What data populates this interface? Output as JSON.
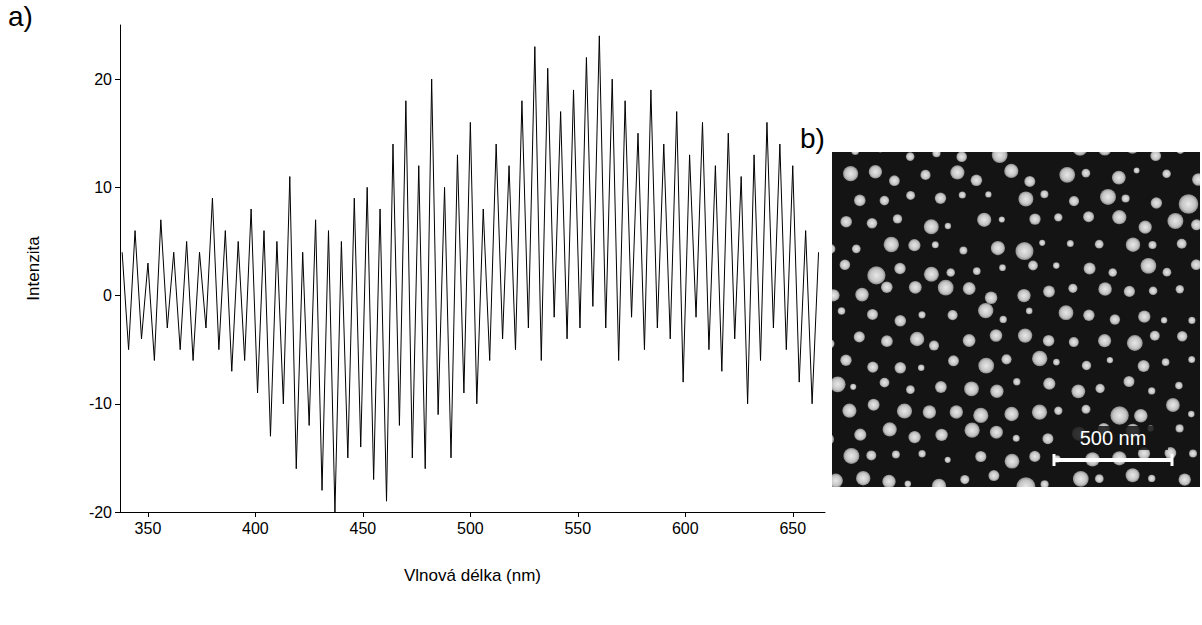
{
  "chart_data": {
    "type": "line",
    "panel_label": "a)",
    "x_label": "Vlnová délka (nm)",
    "y_label": "Intenzita",
    "xlim": [
      337,
      665
    ],
    "xticks": [
      350,
      400,
      450,
      500,
      550,
      600,
      650
    ],
    "ylim": [
      -20,
      25
    ],
    "yticks": [
      -20,
      -10,
      0,
      10,
      20
    ],
    "grid": false,
    "color": "#000000",
    "x": [
      338,
      341,
      344,
      347,
      350,
      353,
      356,
      359,
      362,
      365,
      368,
      371,
      374,
      377,
      380,
      383,
      386,
      389,
      392,
      395,
      398,
      401,
      404,
      407,
      410,
      413,
      416,
      419,
      422,
      425,
      428,
      431,
      434,
      437,
      440,
      443,
      446,
      449,
      452,
      455,
      458,
      461,
      464,
      467,
      470,
      473,
      476,
      479,
      482,
      485,
      488,
      491,
      494,
      497,
      500,
      503,
      506,
      509,
      512,
      515,
      518,
      521,
      524,
      527,
      530,
      533,
      536,
      539,
      542,
      545,
      548,
      551,
      554,
      557,
      560,
      563,
      566,
      569,
      572,
      575,
      578,
      581,
      584,
      587,
      590,
      593,
      596,
      599,
      602,
      605,
      608,
      611,
      614,
      617,
      620,
      623,
      626,
      629,
      632,
      635,
      638,
      641,
      644,
      647,
      650,
      653,
      656,
      659,
      662
    ],
    "values": [
      4,
      -5,
      6,
      -4,
      3,
      -6,
      7,
      -3,
      4,
      -5,
      5,
      -6,
      4,
      -3,
      9,
      -5,
      6,
      -7,
      5,
      -6,
      8,
      -9,
      6,
      -13,
      5,
      -10,
      11,
      -16,
      4,
      -12,
      7,
      -18,
      6,
      -20,
      5,
      -15,
      9,
      -14,
      10,
      -17,
      8,
      -19,
      14,
      -12,
      18,
      -15,
      12,
      -16,
      20,
      -11,
      10,
      -15,
      13,
      -9,
      16,
      -10,
      8,
      -6,
      14,
      -4,
      12,
      -5,
      18,
      -3,
      23,
      -6,
      21,
      -2,
      17,
      -4,
      19,
      -3,
      22,
      -1,
      24,
      -3,
      20,
      -6,
      18,
      -2,
      15,
      -5,
      19,
      -3,
      14,
      -4,
      17,
      -8,
      13,
      -2,
      16,
      -5,
      12,
      -7,
      15,
      -4,
      11,
      -10,
      13,
      -6,
      16,
      -3,
      14,
      -5,
      12,
      -8,
      6,
      -10,
      4
    ]
  },
  "sem_image": {
    "panel_label": "b)",
    "scale_bar_label": "500 nm"
  }
}
